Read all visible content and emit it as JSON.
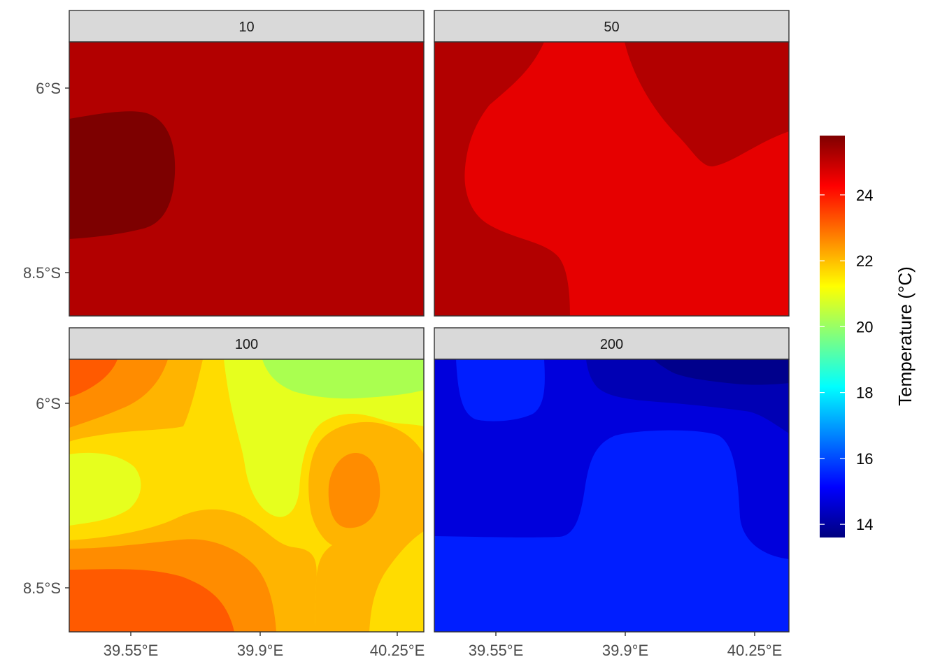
{
  "chart_data": {
    "type": "heatmap",
    "facet_variable": "depth",
    "facets": [
      {
        "label": "10",
        "fill_colors": [
          "#b20000",
          "#7d0000"
        ]
      },
      {
        "label": "50",
        "fill_colors": [
          "#b20000",
          "#e60000"
        ]
      },
      {
        "label": "100",
        "fill_colors": [
          "#ff5a00",
          "#ff8c00",
          "#ffb400",
          "#ffdc00",
          "#e6ff1e",
          "#aaff50"
        ]
      },
      {
        "label": "200",
        "fill_colors": [
          "#001eff",
          "#0000dc",
          "#0000b4",
          "#00008c"
        ]
      }
    ],
    "x_tick_labels": [
      "39.55°E",
      "39.9°E",
      "40.25°E"
    ],
    "y_tick_labels": [
      "6°S",
      "8.5°S"
    ],
    "legend": {
      "title": "Temperature (°C)",
      "ticks": [
        14,
        16,
        18,
        20,
        22,
        24
      ],
      "range": [
        13.6,
        25.8
      ],
      "colormap": [
        "#00007f",
        "#0000ff",
        "#007fff",
        "#00ffff",
        "#7fff7f",
        "#ffff00",
        "#ff7f00",
        "#ff0000",
        "#7f0000"
      ]
    }
  }
}
